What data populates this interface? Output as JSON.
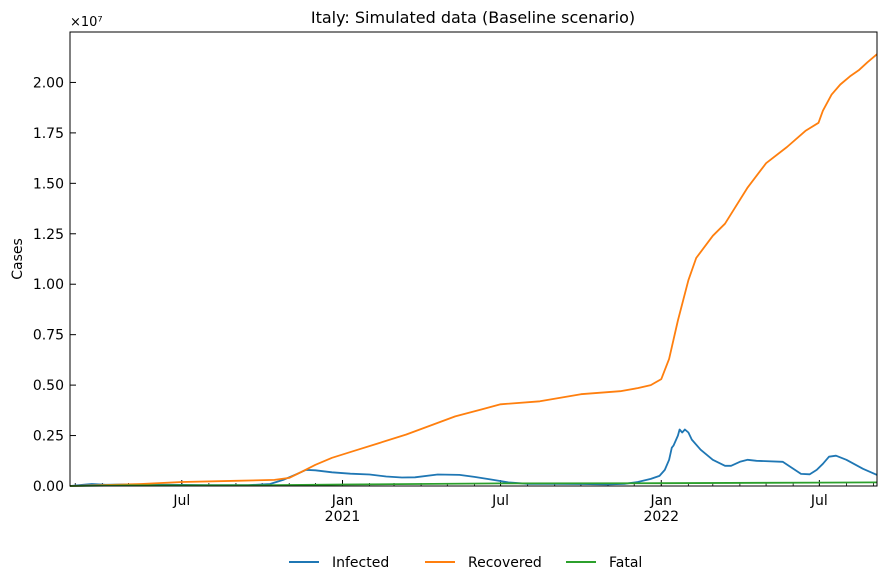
{
  "chart_data": {
    "type": "line",
    "title": "Italy: Simulated data (Baseline scenario)",
    "xlabel": "",
    "ylabel": "Cases",
    "y_offset_text": "×10⁷",
    "y_scale": 10000000,
    "ylim": [
      0,
      22500000
    ],
    "xlim": [
      "2020-02-24",
      "2022-09-05"
    ],
    "grid": false,
    "legend": "bottom-center",
    "x_ticks": [
      {
        "date": "2020-07-01",
        "label": "Jul",
        "sublabel": ""
      },
      {
        "date": "2021-01-01",
        "label": "Jan",
        "sublabel": "2021"
      },
      {
        "date": "2021-07-01",
        "label": "Jul",
        "sublabel": ""
      },
      {
        "date": "2022-01-01",
        "label": "Jan",
        "sublabel": "2022"
      },
      {
        "date": "2022-07-01",
        "label": "Jul",
        "sublabel": ""
      }
    ],
    "y_ticks": [
      "0.00",
      "0.25",
      "0.50",
      "0.75",
      "1.00",
      "1.25",
      "1.50",
      "1.75",
      "2.00"
    ],
    "colors": {
      "Infected": "#1f77b4",
      "Recovered": "#ff7f0e",
      "Fatal": "#2ca02c"
    },
    "series": [
      {
        "name": "Infected",
        "points": [
          [
            "2020-02-24",
            0
          ],
          [
            "2020-03-10",
            60000
          ],
          [
            "2020-03-20",
            100000
          ],
          [
            "2020-04-05",
            60000
          ],
          [
            "2020-05-01",
            80000
          ],
          [
            "2020-06-15",
            60000
          ],
          [
            "2020-08-01",
            40000
          ],
          [
            "2020-09-15",
            40000
          ],
          [
            "2020-10-10",
            100000
          ],
          [
            "2020-10-25",
            300000
          ],
          [
            "2020-11-10",
            600000
          ],
          [
            "2020-11-20",
            800000
          ],
          [
            "2020-12-01",
            780000
          ],
          [
            "2020-12-20",
            680000
          ],
          [
            "2021-01-10",
            610000
          ],
          [
            "2021-02-01",
            570000
          ],
          [
            "2021-02-20",
            470000
          ],
          [
            "2021-03-10",
            420000
          ],
          [
            "2021-03-25",
            430000
          ],
          [
            "2021-04-20",
            570000
          ],
          [
            "2021-05-15",
            550000
          ],
          [
            "2021-06-01",
            450000
          ],
          [
            "2021-06-20",
            320000
          ],
          [
            "2021-07-10",
            180000
          ],
          [
            "2021-08-01",
            110000
          ],
          [
            "2021-09-01",
            110000
          ],
          [
            "2021-10-01",
            100000
          ],
          [
            "2021-11-01",
            80000
          ],
          [
            "2021-11-20",
            110000
          ],
          [
            "2021-12-05",
            200000
          ],
          [
            "2021-12-20",
            350000
          ],
          [
            "2021-12-30",
            500000
          ],
          [
            "2022-01-05",
            800000
          ],
          [
            "2022-01-10",
            1300000
          ],
          [
            "2022-01-13",
            1900000
          ],
          [
            "2022-01-15",
            2000000
          ],
          [
            "2022-01-20",
            2500000
          ],
          [
            "2022-01-22",
            2800000
          ],
          [
            "2022-01-25",
            2650000
          ],
          [
            "2022-01-28",
            2800000
          ],
          [
            "2022-02-01",
            2650000
          ],
          [
            "2022-02-05",
            2300000
          ],
          [
            "2022-02-15",
            1800000
          ],
          [
            "2022-03-01",
            1300000
          ],
          [
            "2022-03-15",
            1000000
          ],
          [
            "2022-03-22",
            1000000
          ],
          [
            "2022-04-01",
            1200000
          ],
          [
            "2022-04-10",
            1300000
          ],
          [
            "2022-04-20",
            1250000
          ],
          [
            "2022-05-20",
            1200000
          ],
          [
            "2022-06-10",
            600000
          ],
          [
            "2022-06-20",
            580000
          ],
          [
            "2022-06-28",
            800000
          ],
          [
            "2022-07-05",
            1100000
          ],
          [
            "2022-07-12",
            1450000
          ],
          [
            "2022-07-20",
            1500000
          ],
          [
            "2022-08-01",
            1300000
          ],
          [
            "2022-08-20",
            850000
          ],
          [
            "2022-09-05",
            550000
          ]
        ]
      },
      {
        "name": "Recovered",
        "points": [
          [
            "2020-02-24",
            0
          ],
          [
            "2020-04-01",
            40000
          ],
          [
            "2020-05-15",
            100000
          ],
          [
            "2020-07-01",
            200000
          ],
          [
            "2020-09-01",
            260000
          ],
          [
            "2020-10-15",
            300000
          ],
          [
            "2020-11-01",
            400000
          ],
          [
            "2020-11-15",
            700000
          ],
          [
            "2020-12-01",
            1050000
          ],
          [
            "2020-12-20",
            1400000
          ],
          [
            "2021-01-15",
            1750000
          ],
          [
            "2021-02-10",
            2100000
          ],
          [
            "2021-03-15",
            2550000
          ],
          [
            "2021-04-15",
            3050000
          ],
          [
            "2021-05-10",
            3450000
          ],
          [
            "2021-06-10",
            3800000
          ],
          [
            "2021-07-01",
            4050000
          ],
          [
            "2021-08-15",
            4200000
          ],
          [
            "2021-10-01",
            4550000
          ],
          [
            "2021-11-15",
            4700000
          ],
          [
            "2021-12-05",
            4850000
          ],
          [
            "2021-12-20",
            5000000
          ],
          [
            "2022-01-01",
            5300000
          ],
          [
            "2022-01-10",
            6300000
          ],
          [
            "2022-01-20",
            8200000
          ],
          [
            "2022-02-01",
            10200000
          ],
          [
            "2022-02-10",
            11300000
          ],
          [
            "2022-03-01",
            12400000
          ],
          [
            "2022-03-15",
            13000000
          ],
          [
            "2022-04-10",
            14800000
          ],
          [
            "2022-05-01",
            16000000
          ],
          [
            "2022-05-25",
            16800000
          ],
          [
            "2022-06-15",
            17600000
          ],
          [
            "2022-06-30",
            18000000
          ],
          [
            "2022-07-05",
            18600000
          ],
          [
            "2022-07-15",
            19400000
          ],
          [
            "2022-07-25",
            19900000
          ],
          [
            "2022-08-05",
            20300000
          ],
          [
            "2022-08-15",
            20600000
          ],
          [
            "2022-08-25",
            21000000
          ],
          [
            "2022-09-05",
            21400000
          ]
        ]
      },
      {
        "name": "Fatal",
        "points": [
          [
            "2020-02-24",
            0
          ],
          [
            "2020-05-01",
            30000
          ],
          [
            "2020-10-01",
            36000
          ],
          [
            "2021-01-01",
            75000
          ],
          [
            "2021-07-01",
            128000
          ],
          [
            "2022-01-01",
            138000
          ],
          [
            "2022-07-01",
            170000
          ],
          [
            "2022-09-05",
            177000
          ]
        ]
      }
    ]
  }
}
